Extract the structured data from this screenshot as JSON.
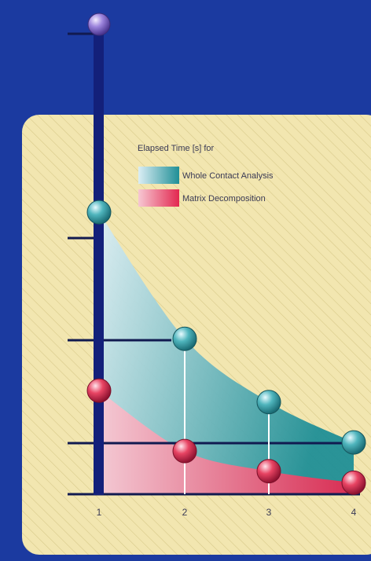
{
  "chart_data": {
    "type": "area",
    "title": "Elapsed Time [s] for",
    "xlabel": "",
    "ylabel": "",
    "x": [
      1,
      2,
      3,
      4
    ],
    "xticks": [
      "1",
      "2",
      "3",
      "4"
    ],
    "ylim": [
      0,
      8
    ],
    "grid": false,
    "legend_position": "top",
    "series": [
      {
        "name": "Whole Contact Analysis",
        "values": [
          4.9,
          2.7,
          1.6,
          0.9
        ],
        "color": "#2e9aa3"
      },
      {
        "name": "Matrix Decomposition",
        "values": [
          1.8,
          0.75,
          0.4,
          0.2
        ],
        "color": "#e43b5c"
      }
    ],
    "colors": {
      "background": "#1b3aa0",
      "panel": "#f2e6b0",
      "axis": "#13207a",
      "top_ball": "#8a6fd1"
    }
  }
}
